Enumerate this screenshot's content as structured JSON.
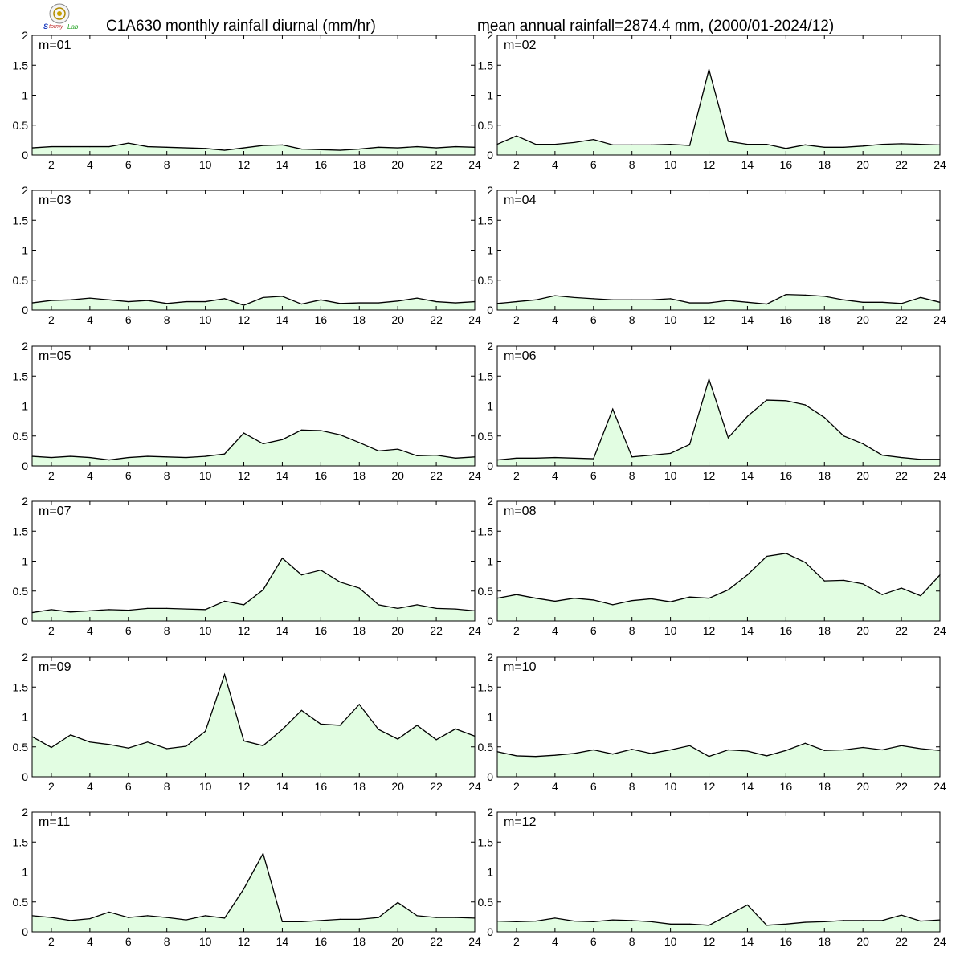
{
  "header": {
    "title_left": "C1A630 monthly rainfall diurnal (mm/hr)",
    "title_right": "mean annual rainfall=2874.4 mm, (2000/01-2024/12)"
  },
  "logo": {
    "icon": "lab-seal-logo-icon",
    "text": "Lab"
  },
  "colors": {
    "fill": "#e2fde2",
    "line": "#000000",
    "frame": "#000000"
  },
  "chart_data": {
    "type": "area",
    "x": [
      1,
      2,
      3,
      4,
      5,
      6,
      7,
      8,
      9,
      10,
      11,
      12,
      13,
      14,
      15,
      16,
      17,
      18,
      19,
      20,
      21,
      22,
      23,
      24
    ],
    "x_ticks": [
      2,
      4,
      6,
      8,
      10,
      12,
      14,
      16,
      18,
      20,
      22,
      24
    ],
    "y_ticks": [
      0,
      0.5,
      1,
      1.5,
      2
    ],
    "y_tick_labels": [
      "0",
      "0.5",
      "1",
      "1.5",
      "2"
    ],
    "ylim": [
      0,
      2
    ],
    "xlim": [
      1,
      24
    ],
    "panels": [
      {
        "label": "m=01",
        "values": [
          0.12,
          0.14,
          0.14,
          0.14,
          0.14,
          0.2,
          0.14,
          0.13,
          0.12,
          0.11,
          0.08,
          0.12,
          0.16,
          0.17,
          0.1,
          0.09,
          0.08,
          0.1,
          0.13,
          0.12,
          0.14,
          0.12,
          0.14,
          0.13
        ]
      },
      {
        "label": "m=02",
        "values": [
          0.18,
          0.32,
          0.18,
          0.18,
          0.21,
          0.26,
          0.17,
          0.17,
          0.17,
          0.18,
          0.16,
          1.43,
          0.23,
          0.18,
          0.18,
          0.11,
          0.17,
          0.13,
          0.13,
          0.15,
          0.18,
          0.19,
          0.18,
          0.17
        ]
      },
      {
        "label": "m=03",
        "values": [
          0.12,
          0.16,
          0.17,
          0.2,
          0.17,
          0.14,
          0.16,
          0.11,
          0.14,
          0.14,
          0.19,
          0.08,
          0.21,
          0.23,
          0.1,
          0.17,
          0.11,
          0.12,
          0.12,
          0.15,
          0.2,
          0.14,
          0.12,
          0.14
        ]
      },
      {
        "label": "m=04",
        "values": [
          0.11,
          0.14,
          0.17,
          0.24,
          0.21,
          0.19,
          0.17,
          0.17,
          0.17,
          0.19,
          0.12,
          0.12,
          0.16,
          0.13,
          0.1,
          0.26,
          0.25,
          0.23,
          0.17,
          0.13,
          0.13,
          0.11,
          0.21,
          0.13
        ]
      },
      {
        "label": "m=05",
        "values": [
          0.16,
          0.14,
          0.16,
          0.14,
          0.1,
          0.14,
          0.16,
          0.15,
          0.14,
          0.16,
          0.2,
          0.55,
          0.37,
          0.44,
          0.6,
          0.59,
          0.52,
          0.39,
          0.25,
          0.28,
          0.17,
          0.18,
          0.13,
          0.15
        ]
      },
      {
        "label": "m=06",
        "values": [
          0.1,
          0.13,
          0.13,
          0.14,
          0.13,
          0.12,
          0.95,
          0.15,
          0.18,
          0.21,
          0.36,
          1.45,
          0.47,
          0.83,
          1.1,
          1.09,
          1.02,
          0.81,
          0.5,
          0.37,
          0.18,
          0.14,
          0.11,
          0.11
        ]
      },
      {
        "label": "m=07",
        "values": [
          0.14,
          0.19,
          0.15,
          0.17,
          0.19,
          0.18,
          0.21,
          0.21,
          0.2,
          0.19,
          0.33,
          0.27,
          0.52,
          1.05,
          0.77,
          0.85,
          0.65,
          0.55,
          0.27,
          0.21,
          0.27,
          0.21,
          0.2,
          0.17
        ]
      },
      {
        "label": "m=08",
        "values": [
          0.38,
          0.44,
          0.38,
          0.33,
          0.38,
          0.35,
          0.27,
          0.34,
          0.37,
          0.32,
          0.4,
          0.38,
          0.52,
          0.77,
          1.08,
          1.13,
          0.98,
          0.67,
          0.68,
          0.62,
          0.44,
          0.55,
          0.42,
          0.77
        ]
      },
      {
        "label": "m=09",
        "values": [
          0.67,
          0.49,
          0.7,
          0.58,
          0.54,
          0.48,
          0.58,
          0.47,
          0.51,
          0.76,
          1.71,
          0.6,
          0.52,
          0.79,
          1.11,
          0.88,
          0.86,
          1.21,
          0.79,
          0.63,
          0.86,
          0.62,
          0.8,
          0.68
        ]
      },
      {
        "label": "m=10",
        "values": [
          0.42,
          0.35,
          0.34,
          0.36,
          0.39,
          0.45,
          0.38,
          0.46,
          0.39,
          0.45,
          0.52,
          0.34,
          0.45,
          0.43,
          0.35,
          0.44,
          0.56,
          0.44,
          0.45,
          0.49,
          0.45,
          0.52,
          0.47,
          0.44
        ]
      },
      {
        "label": "m=11",
        "values": [
          0.27,
          0.24,
          0.19,
          0.22,
          0.33,
          0.24,
          0.27,
          0.24,
          0.2,
          0.27,
          0.23,
          0.72,
          1.31,
          0.17,
          0.17,
          0.19,
          0.21,
          0.21,
          0.24,
          0.49,
          0.27,
          0.24,
          0.24,
          0.23
        ]
      },
      {
        "label": "m=12",
        "values": [
          0.18,
          0.17,
          0.18,
          0.23,
          0.18,
          0.17,
          0.2,
          0.19,
          0.17,
          0.13,
          0.13,
          0.11,
          0.28,
          0.45,
          0.11,
          0.13,
          0.16,
          0.17,
          0.19,
          0.19,
          0.19,
          0.28,
          0.18,
          0.2
        ]
      }
    ]
  }
}
